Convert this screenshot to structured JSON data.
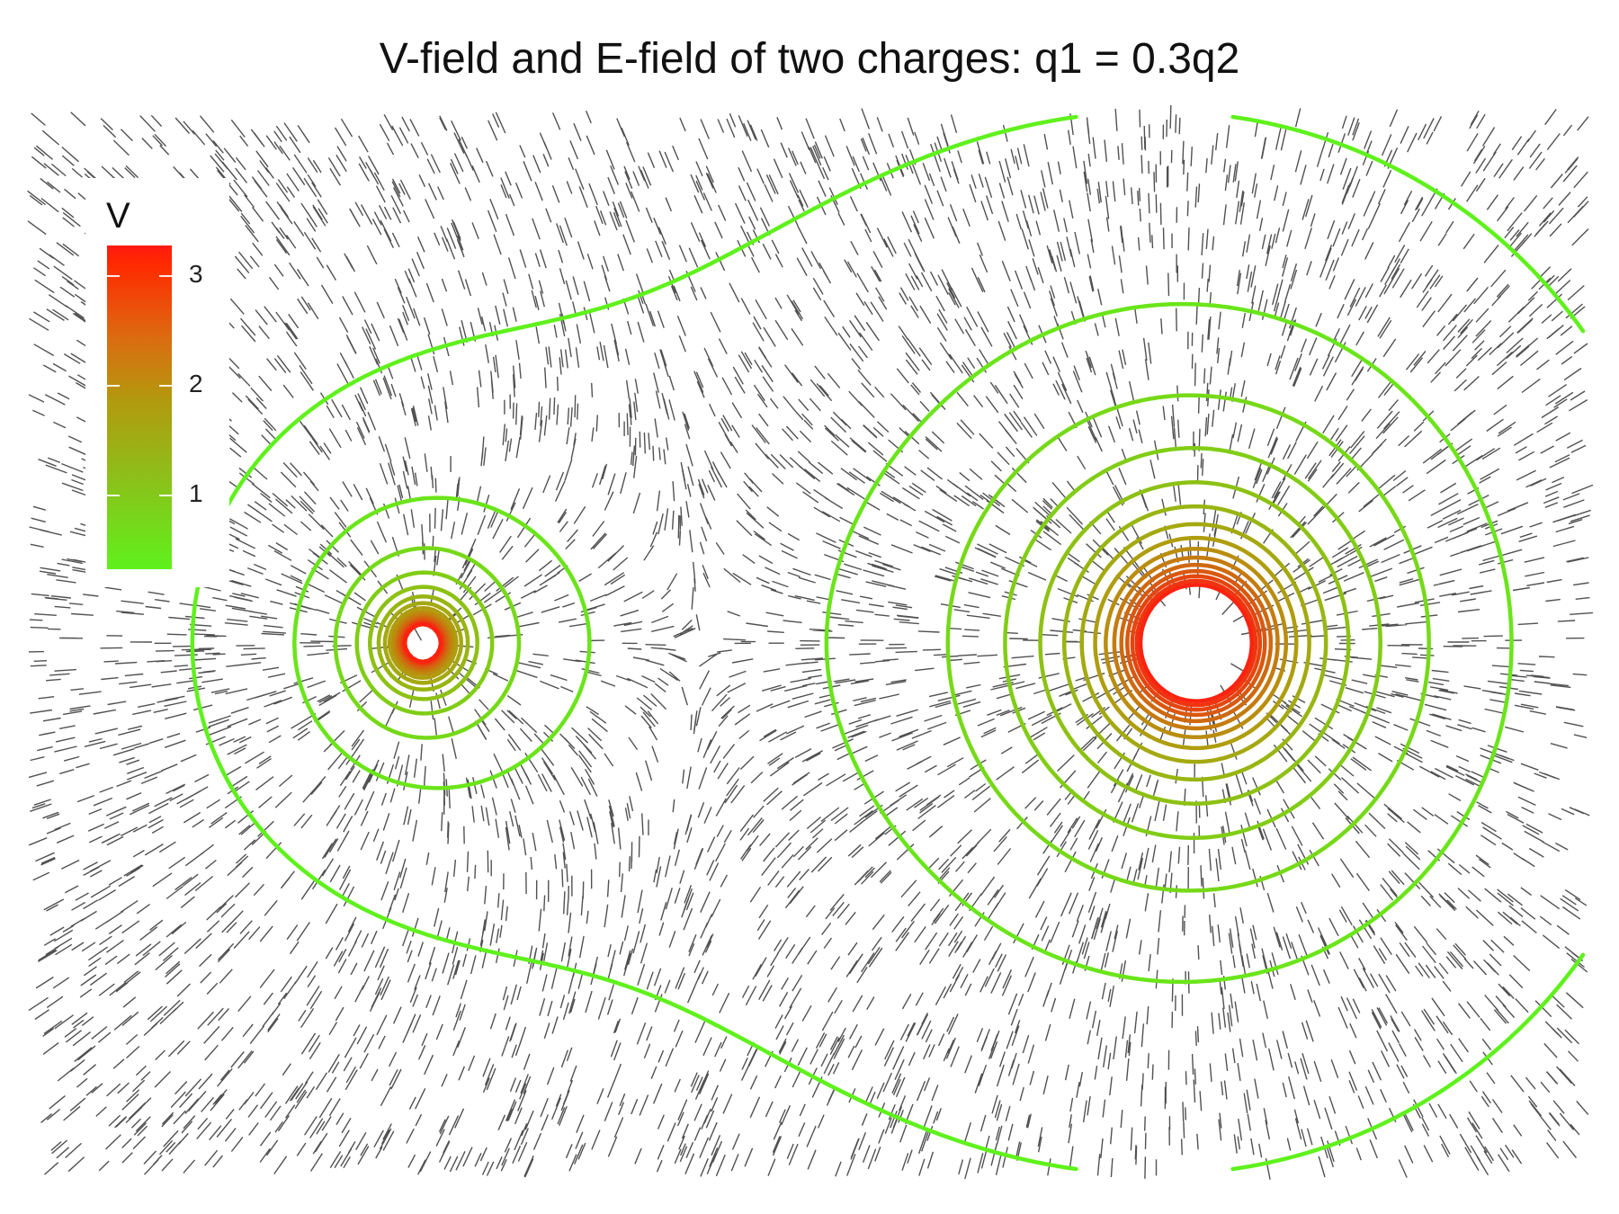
{
  "chart_data": {
    "type": "contour",
    "title": "V-field and E-field of two charges: q1 = 0.3q2",
    "legend": {
      "title": "V",
      "position": "top-left",
      "ticks": [
        3,
        2,
        1
      ],
      "range": [
        0.4,
        3.3
      ],
      "colors": [
        "#5ff11c",
        "#b29a0e",
        "#ff1a10"
      ]
    },
    "charges": [
      {
        "name": "q1",
        "x": -1.0,
        "y": 0.0,
        "relative_charge": 0.3
      },
      {
        "name": "q2",
        "x": 1.0,
        "y": 0.0,
        "relative_charge": 1.0
      }
    ],
    "xlim": [
      -2.0,
      2.0
    ],
    "ylim": [
      -1.3,
      1.3
    ],
    "contour_levels": [
      0.4,
      0.6,
      0.8,
      1.0,
      1.2,
      1.4,
      1.6,
      1.8,
      2.0,
      2.2,
      2.4,
      2.6,
      2.8,
      3.0,
      3.2
    ],
    "field_segments": "E-field direction",
    "grid": false
  }
}
